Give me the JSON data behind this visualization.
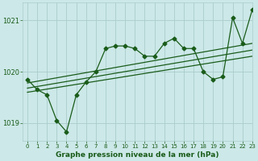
{
  "bg_color": "#cce8e8",
  "grid_color": "#aacccc",
  "line_color": "#1a5c1a",
  "title": "Graphe pression niveau de la mer (hPa)",
  "xlim": [
    -0.5,
    23
  ],
  "ylim": [
    1018.65,
    1021.35
  ],
  "yticks": [
    1019,
    1020,
    1021
  ],
  "xticks": [
    0,
    1,
    2,
    3,
    4,
    5,
    6,
    7,
    8,
    9,
    10,
    11,
    12,
    13,
    14,
    15,
    16,
    17,
    18,
    19,
    20,
    21,
    22,
    23
  ],
  "series_main": {
    "x": [
      0,
      1,
      2,
      3,
      4,
      5,
      6,
      7,
      8,
      9,
      10,
      11,
      12,
      13,
      14,
      15,
      16,
      17,
      18,
      19,
      20,
      21,
      22,
      23
    ],
    "y": [
      1019.85,
      1019.65,
      1019.55,
      1019.05,
      1018.83,
      1019.55,
      1019.8,
      1020.0,
      1020.45,
      1020.5,
      1020.5,
      1020.45,
      1020.3,
      1020.3,
      1020.55,
      1020.65,
      1020.45,
      1020.45,
      1020.0,
      1019.85,
      1019.9,
      1021.05,
      1020.55,
      1021.2
    ]
  },
  "series_linear": [
    {
      "x0": 0,
      "y0": 1019.78,
      "x1": 23,
      "y1": 1020.55
    },
    {
      "x0": 0,
      "y0": 1019.68,
      "x1": 23,
      "y1": 1020.42
    },
    {
      "x0": 0,
      "y0": 1019.6,
      "x1": 23,
      "y1": 1020.3
    }
  ]
}
